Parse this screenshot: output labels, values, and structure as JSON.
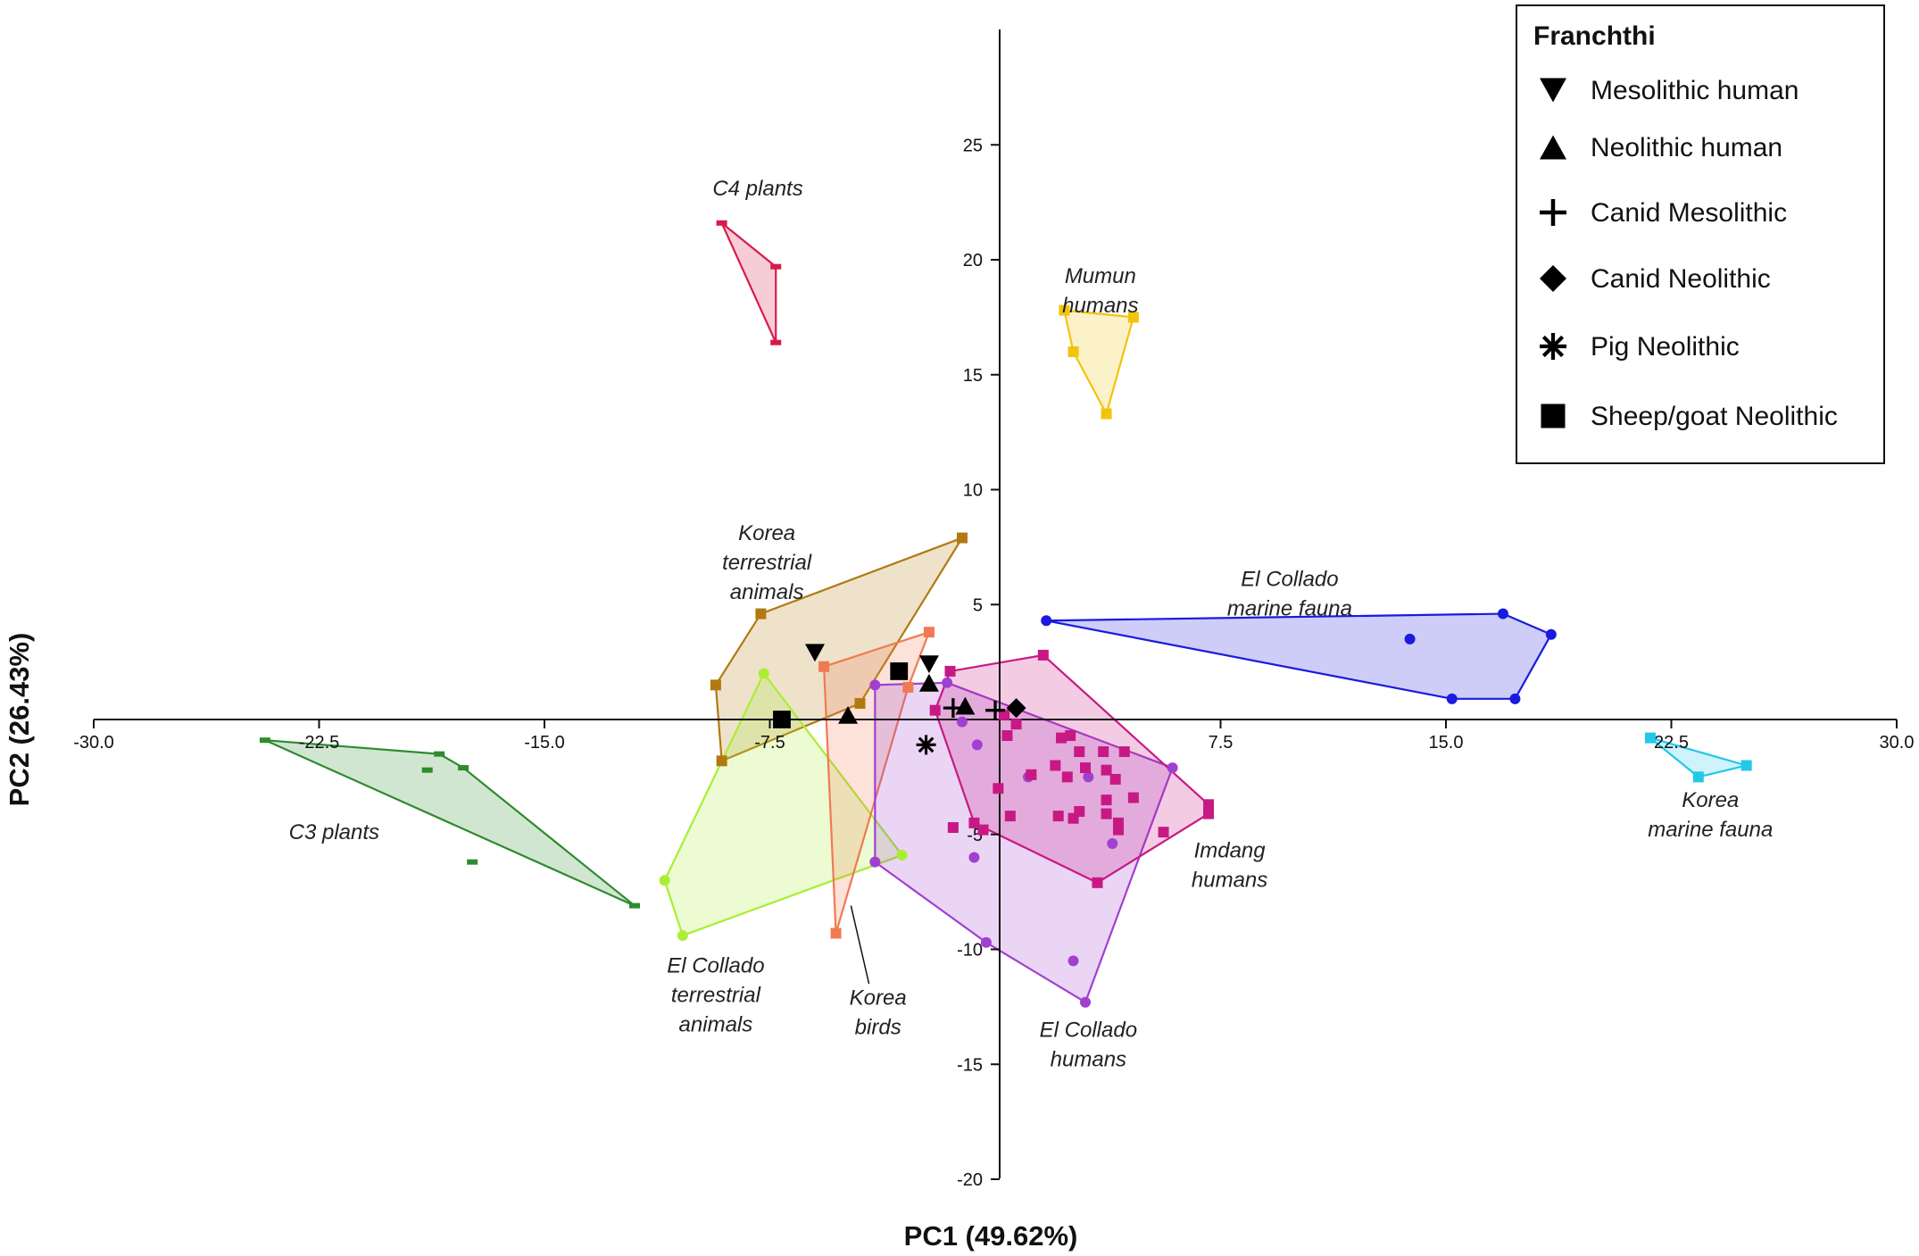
{
  "chart_data": {
    "type": "scatter",
    "xlabel": "PC1 (49.62%)",
    "ylabel": "PC2 (26.43%)",
    "xlim": [
      -30,
      30
    ],
    "ylim": [
      -20,
      30
    ],
    "x_ticks": [
      "-30.0",
      "-22.5",
      "-15.0",
      "-7.5",
      "7.5",
      "15.0",
      "22.5",
      "30.0"
    ],
    "y_ticks": [
      "25",
      "20",
      "15",
      "10",
      "5",
      "-5",
      "-10",
      "-15",
      "-20"
    ],
    "legend": {
      "title": "Franchthi",
      "position": "top-right",
      "entries": [
        {
          "label": "Mesolithic human",
          "marker": "triangle-down"
        },
        {
          "label": "Neolithic human",
          "marker": "triangle-up"
        },
        {
          "label": "Canid Mesolithic",
          "marker": "plus"
        },
        {
          "label": "Canid Neolithic",
          "marker": "diamond"
        },
        {
          "label": "Pig Neolithic",
          "marker": "asterisk"
        },
        {
          "label": "Sheep/goat Neolithic",
          "marker": "square"
        }
      ]
    },
    "groups": [
      {
        "name": "C4 plants",
        "label_lines": [
          "C4 plants"
        ],
        "color": "#d81b4a",
        "marker": "dash",
        "points": [
          [
            -9.1,
            21.6
          ],
          [
            -7.3,
            19.7
          ],
          [
            -7.3,
            16.4
          ]
        ],
        "hull": [
          [
            -9.1,
            21.6
          ],
          [
            -7.3,
            19.7
          ],
          [
            -7.3,
            16.4
          ]
        ]
      },
      {
        "name": "Mumun humans",
        "label_lines": [
          "Mumun",
          "humans"
        ],
        "color": "#f2c40c",
        "marker": "square",
        "points": [
          [
            2.3,
            17.8
          ],
          [
            4.6,
            17.5
          ],
          [
            2.6,
            16.0
          ],
          [
            3.7,
            13.3
          ]
        ],
        "hull": [
          [
            2.3,
            17.8
          ],
          [
            4.6,
            17.5
          ],
          [
            3.7,
            13.3
          ],
          [
            2.6,
            16.0
          ]
        ]
      },
      {
        "name": "C3 plants",
        "label_lines": [
          "C3 plants"
        ],
        "color": "#2e8b2e",
        "marker": "dash",
        "points": [
          [
            -24.3,
            -0.9
          ],
          [
            -18.5,
            -1.5
          ],
          [
            -17.7,
            -2.1
          ],
          [
            -18.9,
            -2.2
          ],
          [
            -17.4,
            -6.2
          ],
          [
            -12.0,
            -8.1
          ]
        ],
        "hull": [
          [
            -24.3,
            -0.9
          ],
          [
            -18.5,
            -1.5
          ],
          [
            -17.7,
            -2.1
          ],
          [
            -12.0,
            -8.1
          ]
        ]
      },
      {
        "name": "Korea terrestrial animals",
        "label_lines": [
          "Korea",
          "terrestrial",
          "animals"
        ],
        "color": "#b07a10",
        "marker": "square",
        "points": [
          [
            -7.8,
            4.6
          ],
          [
            -9.3,
            1.5
          ],
          [
            -9.1,
            -1.8
          ],
          [
            -4.5,
            0.7
          ],
          [
            -1.1,
            7.9
          ]
        ],
        "hull": [
          [
            -7.8,
            4.6
          ],
          [
            -1.1,
            7.9
          ],
          [
            -4.5,
            0.7
          ],
          [
            -9.1,
            -1.8
          ],
          [
            -9.3,
            1.5
          ]
        ]
      },
      {
        "name": "El Collado terrestrial animals",
        "label_lines": [
          "El Collado",
          "terrestrial",
          "animals"
        ],
        "color": "#aaee33",
        "marker": "circle",
        "points": [
          [
            -7.7,
            2.0
          ],
          [
            -11.0,
            -7.0
          ],
          [
            -10.4,
            -9.4
          ],
          [
            -3.1,
            -5.9
          ]
        ],
        "hull": [
          [
            -7.7,
            2.0
          ],
          [
            -3.1,
            -5.9
          ],
          [
            -10.4,
            -9.4
          ],
          [
            -11.0,
            -7.0
          ]
        ]
      },
      {
        "name": "Korea birds",
        "label_lines": [
          "Korea",
          "birds"
        ],
        "color": "#f07a52",
        "marker": "square",
        "points": [
          [
            -5.7,
            2.3
          ],
          [
            -2.2,
            3.8
          ],
          [
            -2.9,
            1.4
          ],
          [
            -5.3,
            -9.3
          ]
        ],
        "hull": [
          [
            -5.7,
            2.3
          ],
          [
            -2.2,
            3.8
          ],
          [
            -2.9,
            1.4
          ],
          [
            -5.3,
            -9.3
          ]
        ]
      },
      {
        "name": "El Collado humans",
        "label_lines": [
          "El Collado",
          "humans"
        ],
        "color": "#a040d0",
        "marker": "circle",
        "points": [
          [
            -4.0,
            1.5
          ],
          [
            -1.6,
            1.6
          ],
          [
            -1.1,
            -0.1
          ],
          [
            -0.6,
            -1.1
          ],
          [
            -0.7,
            -6.0
          ],
          [
            1.1,
            -2.5
          ],
          [
            3.1,
            -2.5
          ],
          [
            3.9,
            -5.4
          ],
          [
            5.9,
            -2.1
          ],
          [
            -4.0,
            -6.2
          ],
          [
            -0.3,
            -9.7
          ],
          [
            2.6,
            -10.5
          ],
          [
            3.0,
            -12.3
          ]
        ],
        "hull": [
          [
            -4.0,
            1.5
          ],
          [
            -1.6,
            1.6
          ],
          [
            5.9,
            -2.1
          ],
          [
            3.0,
            -12.3
          ],
          [
            -0.3,
            -9.7
          ],
          [
            -4.0,
            -6.2
          ]
        ]
      },
      {
        "name": "Imdang humans",
        "label_lines": [
          "Imdang",
          "humans"
        ],
        "color": "#c81883",
        "marker": "square",
        "points": [
          [
            -1.5,
            2.1
          ],
          [
            1.6,
            2.8
          ],
          [
            -2.0,
            0.4
          ],
          [
            0.3,
            0.2
          ],
          [
            0.7,
            -0.2
          ],
          [
            0.4,
            -0.7
          ],
          [
            2.2,
            -0.8
          ],
          [
            2.5,
            -0.7
          ],
          [
            2.8,
            -1.4
          ],
          [
            3.6,
            -1.4
          ],
          [
            4.3,
            -1.4
          ],
          [
            2.0,
            -2.0
          ],
          [
            3.0,
            -2.1
          ],
          [
            3.7,
            -2.2
          ],
          [
            4.0,
            -2.6
          ],
          [
            1.2,
            -2.4
          ],
          [
            2.4,
            -2.5
          ],
          [
            0.1,
            -3.0
          ],
          [
            0.5,
            -4.2
          ],
          [
            3.7,
            -3.5
          ],
          [
            4.6,
            -3.4
          ],
          [
            2.8,
            -4.0
          ],
          [
            3.7,
            -4.1
          ],
          [
            2.1,
            -4.2
          ],
          [
            2.6,
            -4.3
          ],
          [
            4.1,
            -4.5
          ],
          [
            -0.7,
            -4.5
          ],
          [
            -0.4,
            -4.8
          ],
          [
            7.1,
            -3.7
          ],
          [
            7.1,
            -4.1
          ],
          [
            4.1,
            -4.8
          ],
          [
            5.6,
            -4.9
          ],
          [
            3.4,
            -7.1
          ],
          [
            -1.4,
            -4.7
          ]
        ],
        "hull": [
          [
            -1.5,
            2.1
          ],
          [
            1.6,
            2.8
          ],
          [
            7.1,
            -3.7
          ],
          [
            7.1,
            -4.1
          ],
          [
            3.4,
            -7.1
          ],
          [
            -0.7,
            -4.5
          ],
          [
            -2.0,
            0.4
          ]
        ]
      },
      {
        "name": "El Collado marine fauna",
        "label_lines": [
          "El Collado",
          "marine fauna"
        ],
        "color": "#1a1ae0",
        "marker": "circle",
        "points": [
          [
            1.7,
            4.3
          ],
          [
            16.9,
            4.6
          ],
          [
            18.5,
            3.7
          ],
          [
            13.8,
            3.5
          ],
          [
            15.2,
            0.9
          ],
          [
            17.3,
            0.9
          ]
        ],
        "hull": [
          [
            1.7,
            4.3
          ],
          [
            16.9,
            4.6
          ],
          [
            18.5,
            3.7
          ],
          [
            17.3,
            0.9
          ],
          [
            15.2,
            0.9
          ]
        ]
      },
      {
        "name": "Korea marine fauna",
        "label_lines": [
          "Korea",
          "marine fauna"
        ],
        "color": "#22c8e8",
        "marker": "square",
        "points": [
          [
            21.8,
            -0.8
          ],
          [
            25.0,
            -2.0
          ],
          [
            23.4,
            -2.5
          ]
        ],
        "hull": [
          [
            21.8,
            -0.8
          ],
          [
            25.0,
            -2.0
          ],
          [
            23.4,
            -2.5
          ]
        ]
      }
    ],
    "franchthi_points": [
      {
        "series": "Mesolithic human",
        "marker": "triangle-down",
        "points": [
          [
            -6.0,
            2.9
          ],
          [
            -2.2,
            2.4
          ]
        ]
      },
      {
        "series": "Neolithic human",
        "marker": "triangle-up",
        "points": [
          [
            -4.9,
            0.2
          ],
          [
            -2.2,
            1.6
          ],
          [
            -1.0,
            0.6
          ]
        ]
      },
      {
        "series": "Canid Mesolithic",
        "marker": "plus",
        "points": [
          [
            -1.4,
            0.5
          ],
          [
            0.0,
            0.4
          ]
        ]
      },
      {
        "series": "Canid Neolithic",
        "marker": "diamond",
        "points": [
          [
            0.7,
            0.5
          ]
        ]
      },
      {
        "series": "Pig Neolithic",
        "marker": "asterisk",
        "points": [
          [
            -2.3,
            -1.1
          ]
        ]
      },
      {
        "series": "Sheep/goat Neolithic",
        "marker": "square",
        "points": [
          [
            -7.1,
            0.0
          ],
          [
            -3.2,
            2.1
          ]
        ]
      }
    ]
  }
}
